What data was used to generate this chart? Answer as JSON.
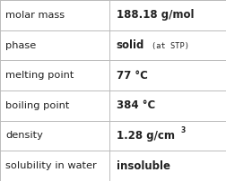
{
  "rows": [
    {
      "label": "molar mass",
      "value": "188.18 g/mol",
      "superscript": null,
      "annotation": null
    },
    {
      "label": "phase",
      "value": "solid",
      "superscript": null,
      "annotation": "(at STP)"
    },
    {
      "label": "melting point",
      "value": "77 °C",
      "superscript": null,
      "annotation": null
    },
    {
      "label": "boiling point",
      "value": "384 °C",
      "superscript": null,
      "annotation": null
    },
    {
      "label": "density",
      "value": "1.28 g/cm",
      "superscript": "3",
      "annotation": null
    },
    {
      "label": "solubility in water",
      "value": "insoluble",
      "superscript": null,
      "annotation": null
    }
  ],
  "col_split": 0.485,
  "bg_color": "#ffffff",
  "border_color": "#bbbbbb",
  "label_font_size": 8.2,
  "value_font_size": 8.5,
  "annotation_font_size": 6.2,
  "superscript_font_size": 5.5,
  "text_color": "#222222",
  "font_family": "DejaVu Sans"
}
